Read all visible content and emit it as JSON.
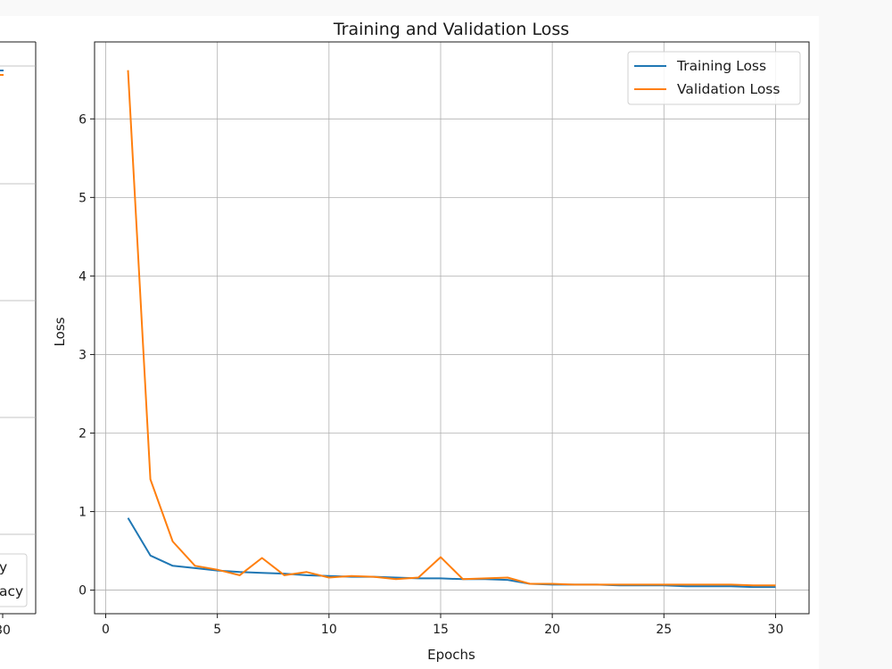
{
  "left_panel": {
    "x_tick_fragment": "30",
    "legend_fragments": [
      "y",
      "acy"
    ],
    "colors": {
      "training": "#1f77b4",
      "validation": "#ff7f0e"
    }
  },
  "chart_data": {
    "type": "line",
    "title": "Training and Validation Loss",
    "xlabel": "Epochs",
    "ylabel": "Loss",
    "xlim": [
      -0.5,
      31.5
    ],
    "ylim": [
      -0.3,
      6.98
    ],
    "xticks": [
      0,
      5,
      10,
      15,
      20,
      25,
      30
    ],
    "yticks": [
      0,
      1,
      2,
      3,
      4,
      5,
      6
    ],
    "grid": true,
    "legend_position": "top-right",
    "x": [
      1,
      2,
      3,
      4,
      5,
      6,
      7,
      8,
      9,
      10,
      11,
      12,
      13,
      14,
      15,
      16,
      17,
      18,
      19,
      20,
      21,
      22,
      23,
      24,
      25,
      26,
      27,
      28,
      29,
      30
    ],
    "series": [
      {
        "name": "Training Loss",
        "color": "#1f77b4",
        "values": [
          0.92,
          0.44,
          0.31,
          0.28,
          0.25,
          0.23,
          0.22,
          0.21,
          0.19,
          0.18,
          0.17,
          0.17,
          0.16,
          0.15,
          0.15,
          0.14,
          0.14,
          0.13,
          0.08,
          0.07,
          0.07,
          0.07,
          0.06,
          0.06,
          0.06,
          0.05,
          0.05,
          0.05,
          0.04,
          0.04
        ]
      },
      {
        "name": "Validation Loss",
        "color": "#ff7f0e",
        "values": [
          6.62,
          1.41,
          0.62,
          0.31,
          0.26,
          0.19,
          0.41,
          0.19,
          0.23,
          0.16,
          0.18,
          0.17,
          0.14,
          0.16,
          0.42,
          0.14,
          0.15,
          0.16,
          0.08,
          0.08,
          0.07,
          0.07,
          0.07,
          0.07,
          0.07,
          0.07,
          0.07,
          0.07,
          0.06,
          0.06
        ]
      }
    ]
  }
}
